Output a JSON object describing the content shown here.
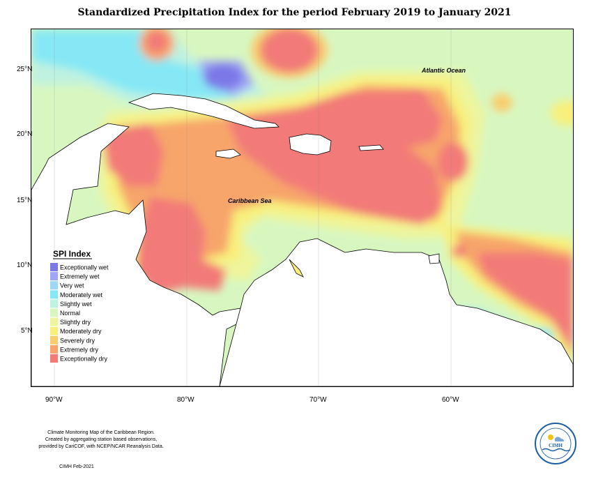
{
  "title": "Standardized Precipitation Index for the period February 2019 to January 2021",
  "labels": {
    "ocean": "Atlantic Ocean",
    "sea": "Caribbean Sea"
  },
  "axes": {
    "x_ticks": [
      "90°W",
      "80°W",
      "70°W",
      "60°W"
    ],
    "y_ticks": [
      "25°N",
      "20°N",
      "15°N",
      "10°N",
      "5°N"
    ]
  },
  "legend": {
    "title": "SPI Index",
    "items": [
      {
        "label": "Exceptionally wet",
        "color": "#7b78e8"
      },
      {
        "label": "Extremely wet",
        "color": "#9fa6f2"
      },
      {
        "label": "Very wet",
        "color": "#9dd8f7"
      },
      {
        "label": "Moderately wet",
        "color": "#86e8f4"
      },
      {
        "label": "Slightly wet",
        "color": "#bff2e0"
      },
      {
        "label": "Normal",
        "color": "#d8f7c0"
      },
      {
        "label": "Slightly dry",
        "color": "#eef59c"
      },
      {
        "label": "Moderately dry",
        "color": "#f8ef7c"
      },
      {
        "label": "Severely dry",
        "color": "#f9cd6e"
      },
      {
        "label": "Extremely dry",
        "color": "#f7a56a"
      },
      {
        "label": "Exceptionally dry",
        "color": "#f27a78"
      }
    ]
  },
  "footer": {
    "lines": [
      "Climate Monitoring Map of the Caribbean Region.",
      "Created by aggregating station based observations,",
      "provided by CariCOF, with NCEP/NCAR Reanalysis Data."
    ],
    "date": "CIMH Feb-2021",
    "logo_text": "CIMH"
  }
}
